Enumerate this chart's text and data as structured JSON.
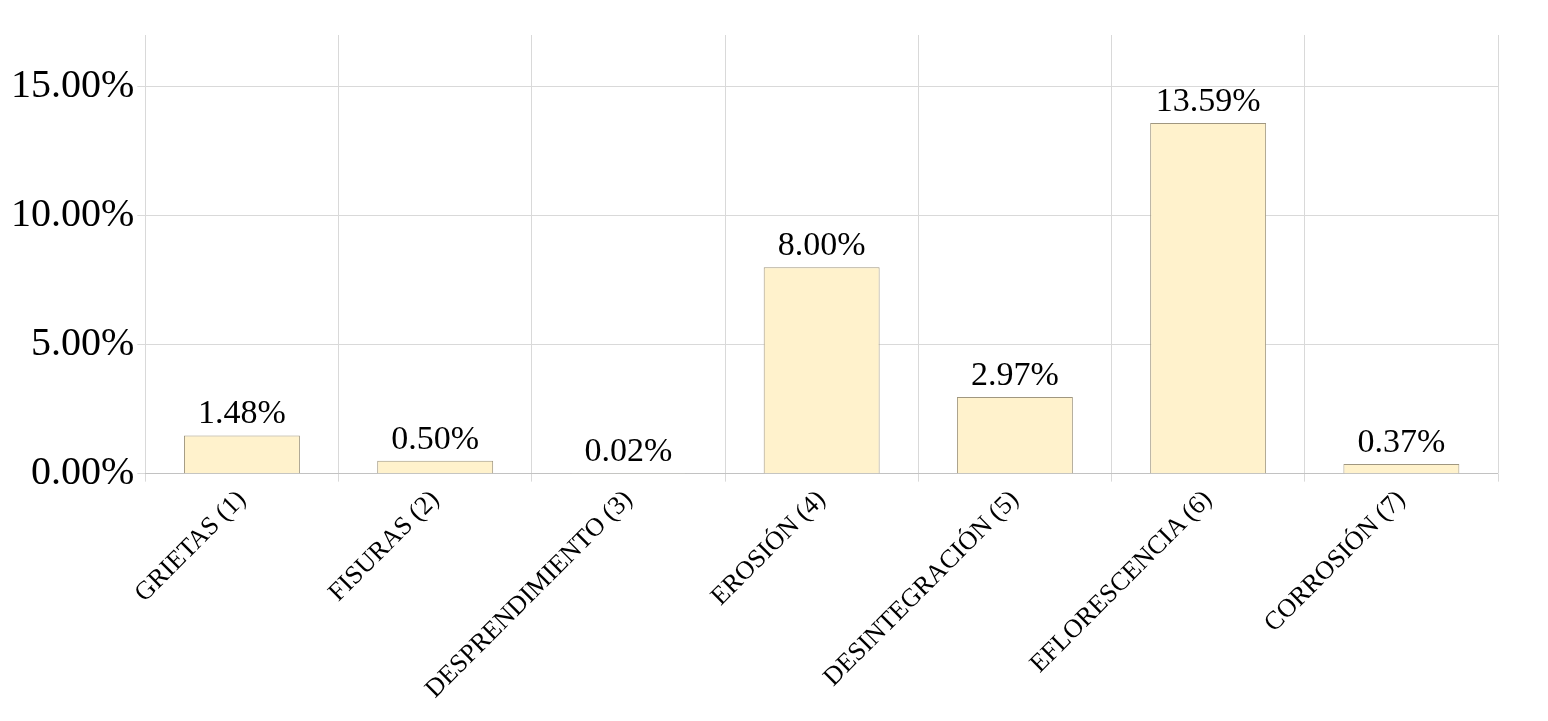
{
  "chart_data": {
    "type": "bar",
    "categories": [
      "GRIETAS (1)",
      "FISURAS (2)",
      "DESPRENDIMIENTO (3)",
      "EROSIÓN (4)",
      "DESINTEGRACIÓN (5)",
      "EFLORESCENCIA (6)",
      "CORROSIÓN (7)"
    ],
    "values": [
      1.48,
      0.5,
      0.02,
      8.0,
      2.97,
      13.59,
      0.37
    ],
    "value_labels": [
      "1.48%",
      "0.50%",
      "0.02%",
      "8.00%",
      "2.97%",
      "13.59%",
      "0.37%"
    ],
    "color": "#fff2cc",
    "ylim": [
      0,
      17
    ],
    "yticks": [
      {
        "value": 0,
        "label": "0.00%"
      },
      {
        "value": 5,
        "label": "5.00%"
      },
      {
        "value": 10,
        "label": "10.00%"
      },
      {
        "value": 15,
        "label": "15.00%"
      }
    ],
    "grid": true
  }
}
